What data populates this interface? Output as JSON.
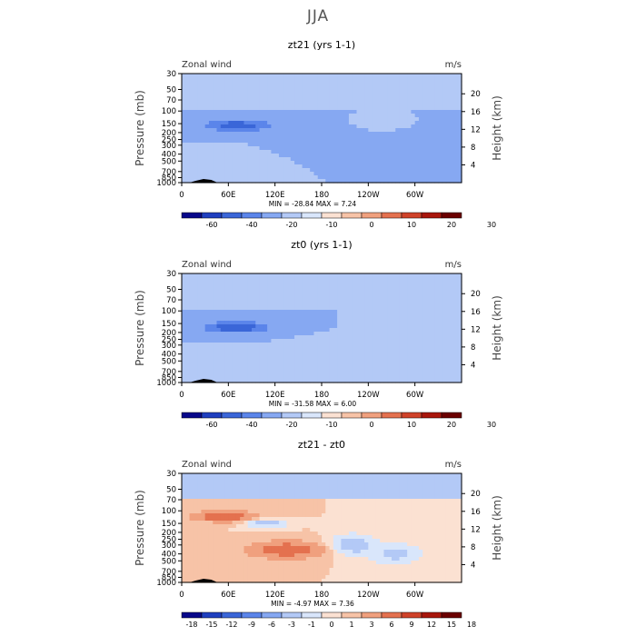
{
  "page": {
    "title": "JJA"
  },
  "chart_data": [
    {
      "type": "heatmap",
      "title": "zt21 (yrs 1-1)",
      "top_left_label": "Zonal wind",
      "top_right_label": "m/s",
      "ylabel": "Pressure (mb)",
      "ylabel_right": "Height (km)",
      "x_ticks": [
        "0",
        "60E",
        "120E",
        "180",
        "120W",
        "60W"
      ],
      "y_ticks": [
        "30",
        "50",
        "70",
        "100",
        "150",
        "200",
        "250",
        "300",
        "400",
        "500",
        "700",
        "850",
        "1000"
      ],
      "y_ticks_right": [
        "20",
        "16",
        "12",
        "8",
        "4"
      ],
      "stats": "MIN = -28.84   MAX =   7.24",
      "colorbar_labels": [
        "-60",
        "-40",
        "-20",
        "-10",
        "0",
        "10",
        "20",
        "30"
      ],
      "colorbar_colors": [
        "#08088a",
        "#1f3fbf",
        "#3a66d8",
        "#5b85ea",
        "#86a8f2",
        "#b3c9f6",
        "#d9e6fb",
        "#fbe1d2",
        "#f7c3a7",
        "#f0a07e",
        "#e4714f",
        "#cf4229",
        "#a8160c",
        "#6b0000"
      ],
      "features": [
        {
          "kind": "band",
          "lon": [
            0,
            360
          ],
          "p": [
            30,
            100
          ],
          "value": 6
        },
        {
          "kind": "blob",
          "lon": 72,
          "p": 160,
          "lon_w": 42,
          "logp_w": 0.18,
          "value": -28
        },
        {
          "kind": "blob",
          "lon": 70,
          "p": 600,
          "lon_w": 38,
          "logp_w": 0.3,
          "value": 4
        },
        {
          "kind": "blob",
          "lon": 255,
          "p": 150,
          "lon_w": 18,
          "logp_w": 0.15,
          "value": 5
        },
        {
          "kind": "blob",
          "lon": 220,
          "p": 300,
          "lon_w": 55,
          "logp_w": 0.35,
          "value": -4
        }
      ]
    },
    {
      "type": "heatmap",
      "title": "zt0 (yrs 1-1)",
      "top_left_label": "Zonal wind",
      "top_right_label": "m/s",
      "ylabel": "Pressure (mb)",
      "ylabel_right": "Height (km)",
      "x_ticks": [
        "0",
        "60E",
        "120E",
        "180",
        "120W",
        "60W"
      ],
      "y_ticks": [
        "30",
        "50",
        "70",
        "100",
        "150",
        "200",
        "250",
        "300",
        "400",
        "500",
        "700",
        "850",
        "1000"
      ],
      "y_ticks_right": [
        "20",
        "16",
        "12",
        "8",
        "4"
      ],
      "stats": "MIN = -31.58   MAX =   6.00",
      "colorbar_labels": [
        "-60",
        "-40",
        "-20",
        "-10",
        "0",
        "10",
        "20",
        "30"
      ],
      "colorbar_colors": [
        "#08088a",
        "#1f3fbf",
        "#3a66d8",
        "#5b85ea",
        "#86a8f2",
        "#b3c9f6",
        "#d9e6fb",
        "#fbe1d2",
        "#f7c3a7",
        "#f0a07e",
        "#e4714f",
        "#cf4229",
        "#a8160c",
        "#6b0000"
      ],
      "features": [
        {
          "kind": "band",
          "lon": [
            0,
            360
          ],
          "p": [
            30,
            100
          ],
          "value": 6
        },
        {
          "kind": "blob",
          "lon": 70,
          "p": 170,
          "lon_w": 40,
          "logp_w": 0.18,
          "value": -31
        },
        {
          "kind": "blob",
          "lon": 60,
          "p": 550,
          "lon_w": 40,
          "logp_w": 0.3,
          "value": 4
        },
        {
          "kind": "blob",
          "lon": 258,
          "p": 170,
          "lon_w": 20,
          "logp_w": 0.18,
          "value": 5
        },
        {
          "kind": "blob",
          "lon": 180,
          "p": 400,
          "lon_w": 45,
          "logp_w": 0.3,
          "value": 2
        }
      ]
    },
    {
      "type": "heatmap",
      "title": "zt21 - zt0",
      "top_left_label": "Zonal wind",
      "top_right_label": "m/s",
      "ylabel": "Pressure (mb)",
      "ylabel_right": "Height (km)",
      "x_ticks": [
        "0",
        "60E",
        "120E",
        "180",
        "120W",
        "60W"
      ],
      "y_ticks": [
        "30",
        "50",
        "70",
        "100",
        "150",
        "200",
        "250",
        "300",
        "400",
        "500",
        "700",
        "850",
        "1000"
      ],
      "y_ticks_right": [
        "20",
        "16",
        "12",
        "8",
        "4"
      ],
      "stats": "MIN = -4.97   MAX =   7.36",
      "colorbar_labels": [
        "-18",
        "-15",
        "-12",
        "-9",
        "-6",
        "-3",
        "-1",
        "0",
        "1",
        "3",
        "6",
        "9",
        "12",
        "15",
        "18"
      ],
      "colorbar_colors": [
        "#08088a",
        "#1f3fbf",
        "#3a66d8",
        "#5b85ea",
        "#86a8f2",
        "#b3c9f6",
        "#d9e6fb",
        "#fbe1d2",
        "#f7c3a7",
        "#f0a07e",
        "#e4714f",
        "#cf4229",
        "#a8160c",
        "#6b0000"
      ],
      "features": [
        {
          "kind": "band",
          "lon": [
            0,
            360
          ],
          "p": [
            30,
            70
          ],
          "value": -4
        },
        {
          "kind": "blob",
          "lon": 55,
          "p": 120,
          "lon_w": 35,
          "logp_w": 0.15,
          "value": 6
        },
        {
          "kind": "blob",
          "lon": 110,
          "p": 150,
          "lon_w": 22,
          "logp_w": 0.12,
          "value": -5
        },
        {
          "kind": "blob",
          "lon": 135,
          "p": 350,
          "lon_w": 45,
          "logp_w": 0.25,
          "value": 5
        },
        {
          "kind": "blob",
          "lon": 220,
          "p": 300,
          "lon_w": 25,
          "logp_w": 0.3,
          "value": -5
        },
        {
          "kind": "blob",
          "lon": 275,
          "p": 400,
          "lon_w": 30,
          "logp_w": 0.3,
          "value": -4
        }
      ]
    }
  ]
}
